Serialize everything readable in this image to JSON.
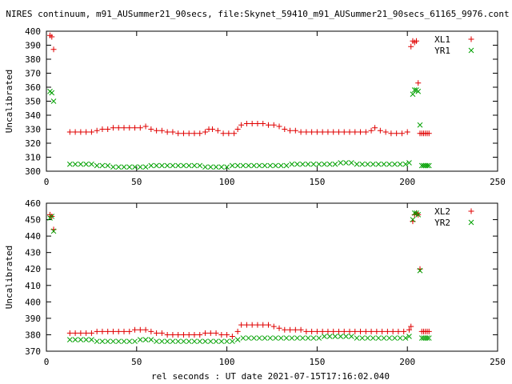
{
  "chart_data": [
    {
      "type": "scatter",
      "title": "NIRES continuum, m91_AUSummer21_90secs, file:Skynet_59410_m91_AUSummer21_90secs_61165_9976.cont",
      "ylabel": "Uncalibrated",
      "xlabel": "",
      "xlim": [
        0,
        250
      ],
      "ylim": [
        300,
        400
      ],
      "xticks": [
        0,
        50,
        100,
        150,
        200,
        250
      ],
      "yticks": [
        300,
        310,
        320,
        330,
        340,
        350,
        360,
        370,
        380,
        390,
        400
      ],
      "legend_position": "top-right",
      "series": [
        {
          "name": "XL1",
          "marker": "+",
          "color": "#e00000",
          "x": [
            2,
            3,
            4,
            13,
            16,
            19,
            22,
            25,
            28,
            31,
            34,
            37,
            40,
            43,
            46,
            49,
            52,
            55,
            58,
            61,
            64,
            67,
            70,
            73,
            76,
            79,
            82,
            85,
            88,
            90,
            92,
            95,
            98,
            101,
            104,
            106,
            108,
            111,
            114,
            117,
            120,
            123,
            126,
            129,
            132,
            135,
            138,
            141,
            144,
            147,
            150,
            153,
            156,
            159,
            162,
            165,
            168,
            171,
            174,
            177,
            180,
            182,
            185,
            188,
            191,
            194,
            197,
            200,
            202,
            203,
            204,
            205,
            206,
            207,
            208,
            209,
            210,
            211,
            212
          ],
          "y": [
            397,
            396,
            387,
            328,
            328,
            328,
            328,
            328,
            329,
            330,
            330,
            331,
            331,
            331,
            331,
            331,
            331,
            332,
            330,
            329,
            329,
            328,
            328,
            327,
            327,
            327,
            327,
            327,
            328,
            330,
            330,
            329,
            327,
            327,
            327,
            330,
            333,
            334,
            334,
            334,
            334,
            333,
            333,
            332,
            330,
            329,
            329,
            328,
            328,
            328,
            328,
            328,
            328,
            328,
            328,
            328,
            328,
            328,
            328,
            328,
            329,
            331,
            329,
            328,
            327,
            327,
            327,
            328,
            389,
            393,
            392,
            393,
            363,
            327,
            327,
            327,
            327,
            327,
            327
          ]
        },
        {
          "name": "YR1",
          "marker": "x",
          "color": "#00a000",
          "x": [
            2,
            3,
            4,
            13,
            16,
            19,
            22,
            25,
            28,
            31,
            34,
            37,
            40,
            43,
            46,
            49,
            52,
            55,
            58,
            61,
            64,
            67,
            70,
            73,
            76,
            79,
            82,
            85,
            88,
            91,
            94,
            97,
            100,
            103,
            106,
            109,
            112,
            115,
            118,
            121,
            124,
            127,
            130,
            133,
            136,
            139,
            142,
            145,
            148,
            151,
            154,
            157,
            160,
            163,
            166,
            169,
            172,
            175,
            178,
            181,
            184,
            187,
            190,
            193,
            196,
            199,
            201,
            203,
            204,
            205,
            206,
            207,
            208,
            209,
            210,
            211,
            212
          ],
          "y": [
            357,
            356,
            350,
            305,
            305,
            305,
            305,
            305,
            304,
            304,
            304,
            303,
            303,
            303,
            303,
            303,
            303,
            303,
            304,
            304,
            304,
            304,
            304,
            304,
            304,
            304,
            304,
            304,
            303,
            303,
            303,
            303,
            303,
            304,
            304,
            304,
            304,
            304,
            304,
            304,
            304,
            304,
            304,
            304,
            305,
            305,
            305,
            305,
            305,
            305,
            305,
            305,
            305,
            306,
            306,
            306,
            305,
            305,
            305,
            305,
            305,
            305,
            305,
            305,
            305,
            305,
            306,
            355,
            358,
            358,
            357,
            333,
            304,
            304,
            304,
            304,
            304
          ]
        }
      ]
    },
    {
      "type": "scatter",
      "title": "",
      "ylabel": "Uncalibrated",
      "xlabel": "rel seconds : UT date 2021-07-15T17:16:02.040",
      "xlim": [
        0,
        250
      ],
      "ylim": [
        370,
        460
      ],
      "xticks": [
        0,
        50,
        100,
        150,
        200,
        250
      ],
      "yticks": [
        370,
        380,
        390,
        400,
        410,
        420,
        430,
        440,
        450,
        460
      ],
      "legend_position": "top-right",
      "series": [
        {
          "name": "XL2",
          "marker": "+",
          "color": "#e00000",
          "x": [
            2,
            3,
            4,
            13,
            16,
            19,
            22,
            25,
            28,
            31,
            34,
            37,
            40,
            43,
            46,
            49,
            52,
            55,
            58,
            61,
            64,
            67,
            70,
            73,
            76,
            79,
            82,
            85,
            88,
            91,
            94,
            97,
            100,
            103,
            106,
            108,
            111,
            114,
            117,
            120,
            123,
            126,
            129,
            132,
            135,
            138,
            141,
            144,
            147,
            150,
            153,
            156,
            159,
            162,
            165,
            168,
            171,
            174,
            177,
            180,
            183,
            186,
            189,
            192,
            195,
            198,
            201,
            202,
            203,
            204,
            205,
            206,
            207,
            208,
            209,
            210,
            211,
            212
          ],
          "y": [
            453,
            452,
            444,
            381,
            381,
            381,
            381,
            381,
            382,
            382,
            382,
            382,
            382,
            382,
            382,
            383,
            383,
            383,
            382,
            381,
            381,
            380,
            380,
            380,
            380,
            380,
            380,
            380,
            381,
            381,
            381,
            380,
            380,
            379,
            382,
            386,
            386,
            386,
            386,
            386,
            386,
            385,
            384,
            383,
            383,
            383,
            383,
            382,
            382,
            382,
            382,
            382,
            382,
            382,
            382,
            382,
            382,
            382,
            382,
            382,
            382,
            382,
            382,
            382,
            382,
            382,
            383,
            385,
            449,
            453,
            454,
            453,
            420,
            382,
            382,
            382,
            382,
            382
          ]
        },
        {
          "name": "YR2",
          "marker": "x",
          "color": "#00a000",
          "x": [
            2,
            3,
            4,
            13,
            16,
            19,
            22,
            25,
            28,
            31,
            34,
            37,
            40,
            43,
            46,
            49,
            52,
            55,
            58,
            61,
            64,
            67,
            70,
            73,
            76,
            79,
            82,
            85,
            88,
            91,
            94,
            97,
            100,
            103,
            106,
            109,
            112,
            115,
            118,
            121,
            124,
            127,
            130,
            133,
            136,
            139,
            142,
            145,
            148,
            151,
            154,
            157,
            160,
            163,
            166,
            169,
            172,
            175,
            178,
            181,
            184,
            187,
            190,
            193,
            196,
            199,
            201,
            203,
            204,
            205,
            206,
            207,
            208,
            209,
            210,
            211,
            212
          ],
          "y": [
            451,
            452,
            443,
            377,
            377,
            377,
            377,
            377,
            376,
            376,
            376,
            376,
            376,
            376,
            376,
            376,
            377,
            377,
            377,
            376,
            376,
            376,
            376,
            376,
            376,
            376,
            376,
            376,
            376,
            376,
            376,
            376,
            376,
            376,
            377,
            378,
            378,
            378,
            378,
            378,
            378,
            378,
            378,
            378,
            378,
            378,
            378,
            378,
            378,
            378,
            379,
            379,
            379,
            379,
            379,
            379,
            378,
            378,
            378,
            378,
            378,
            378,
            378,
            378,
            378,
            378,
            379,
            450,
            454,
            454,
            453,
            419,
            378,
            378,
            378,
            378,
            378
          ]
        }
      ]
    }
  ]
}
